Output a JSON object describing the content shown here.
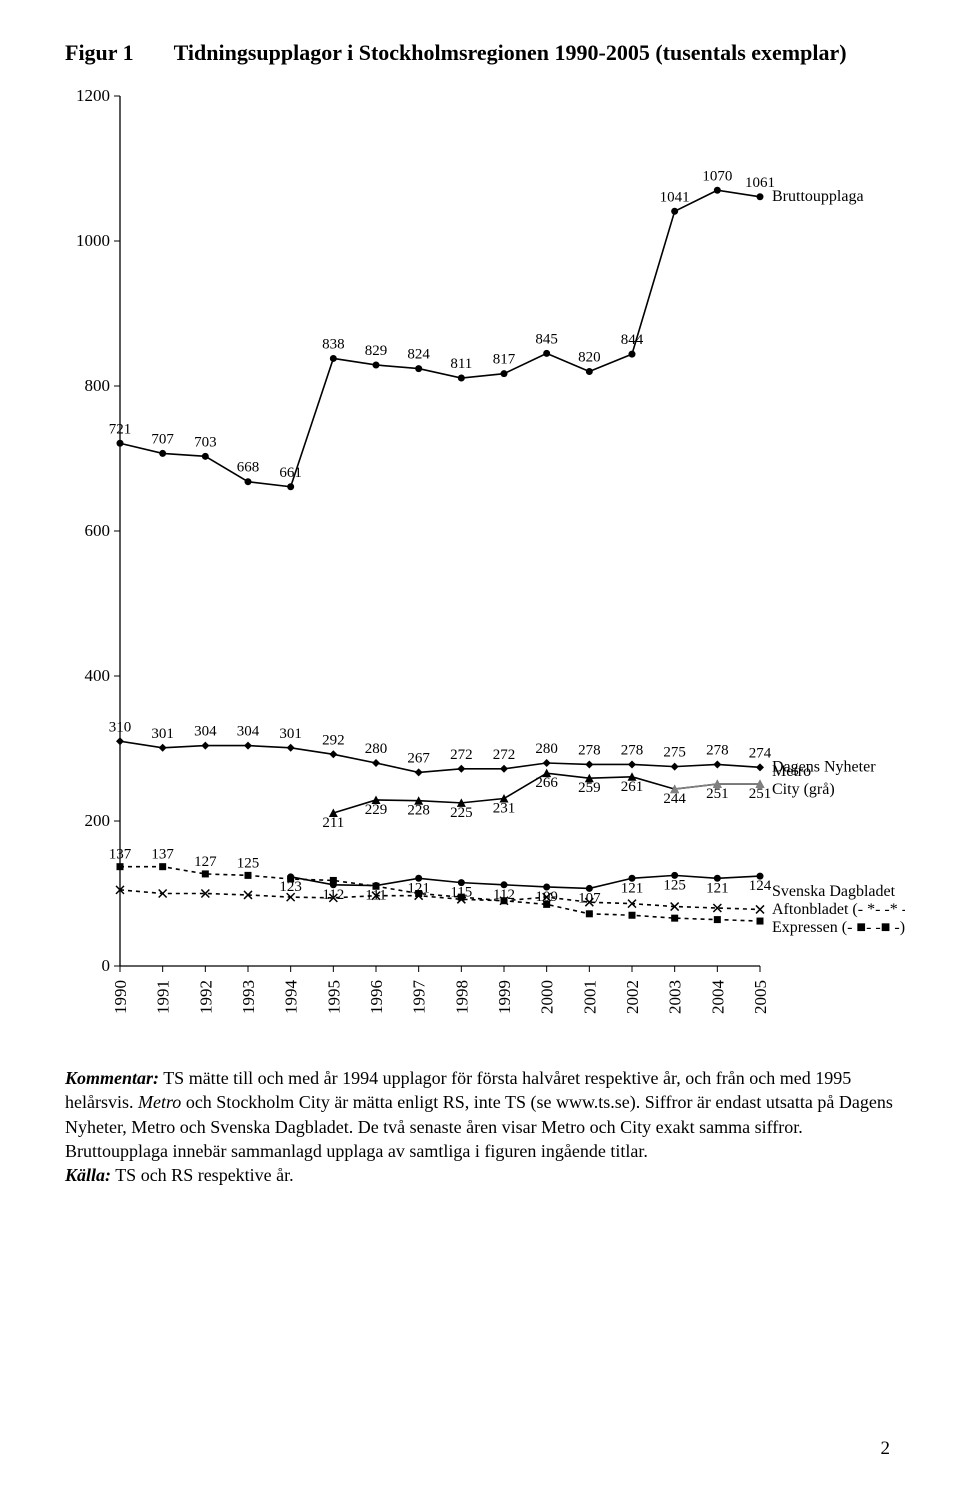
{
  "title_prefix": "Figur 1",
  "title_main": "Tidningsupplagor i Stockholmsregionen 1990-2005 (tusentals exemplar)",
  "chart": {
    "type": "line",
    "years": [
      1990,
      1991,
      1992,
      1993,
      1994,
      1995,
      1996,
      1997,
      1998,
      1999,
      2000,
      2001,
      2002,
      2003,
      2004,
      2005
    ],
    "ymin": 0,
    "ymax": 1200,
    "ytick_step": 200,
    "series": {
      "Bruttoupplaga": {
        "marker": "dot",
        "dash": "none",
        "color": "#000000",
        "start": 0,
        "values": [
          721,
          707,
          703,
          668,
          661,
          838,
          829,
          824,
          811,
          817,
          845,
          820,
          844,
          1041,
          1070,
          1061
        ],
        "label_offset_y": -10
      },
      "Dagens_Nyheter": {
        "marker": "diamond",
        "dash": "none",
        "color": "#000000",
        "start": 0,
        "values": [
          310,
          301,
          304,
          304,
          301,
          292,
          280,
          267,
          272,
          272,
          280,
          278,
          278,
          275,
          278,
          274
        ],
        "label_offset_y": -10
      },
      "Metro": {
        "marker": "triangle",
        "dash": "none",
        "color": "#000000",
        "start": 5,
        "values": [
          211,
          229,
          228,
          225,
          231,
          266,
          259,
          261,
          244,
          251,
          251
        ],
        "label_offset_y": 14
      },
      "City": {
        "marker": "triangle",
        "dash": "none",
        "color": "#808080",
        "start": 13,
        "values": [
          244,
          251,
          251
        ]
      },
      "Svenska_Dagbladet": {
        "marker": "dot",
        "dash": "none",
        "color": "#000000",
        "start": 4,
        "values": [
          123,
          112,
          111,
          121,
          115,
          112,
          109,
          107,
          121,
          125,
          121,
          124
        ],
        "label_offset_y": 14
      },
      "Aftonbladet": {
        "marker": "x",
        "dash": "4,4",
        "color": "#000000",
        "start": 0,
        "values": [
          105,
          100,
          100,
          98,
          95,
          94,
          97,
          97,
          92,
          90,
          95,
          88,
          86,
          82,
          80,
          78
        ]
      },
      "Expressen": {
        "marker": "square",
        "dash": "4,4",
        "color": "#000000",
        "start": 0,
        "values": [
          137,
          137,
          127,
          125,
          120,
          118,
          110,
          100,
          95,
          90,
          85,
          72,
          70,
          66,
          64,
          62
        ]
      }
    },
    "expressen_labels": [
      137,
      137,
      127,
      125
    ],
    "legend": [
      {
        "key": "Bruttoupplaga",
        "text": "Bruttoupplaga"
      },
      {
        "key": "Dagens_Nyheter",
        "text": "Dagens Nyheter"
      },
      {
        "key": "Metro",
        "text": "Metro"
      },
      {
        "key": "City",
        "text": "City (grå)"
      },
      {
        "key": "Svenska_Dagbladet",
        "text": "Svenska Dagbladet"
      },
      {
        "key": "Aftonbladet",
        "text": "Aftonbladet (- *- -* -)"
      },
      {
        "key": "Expressen",
        "text": "Expressen (- ■- -■ -)"
      }
    ],
    "colors": {
      "axis": "#000000",
      "grey": "#808080",
      "bg": "#ffffff"
    },
    "font_sizes": {
      "tick": 17,
      "point_label": 15,
      "legend": 16
    }
  },
  "comment": {
    "k_label": "Kommentar:",
    "k_body_1": " TS mätte till och med år 1994 upplagor för första halvåret respektive år, och från och med 1995 helårsvis. ",
    "k_ital": "Metro",
    "k_body_2": " och Stockholm City är mätta enligt RS, inte TS (se www.ts.se). Siffror är endast utsatta på Dagens Nyheter, Metro och Svenska Dagbladet. De två senaste åren visar Metro och City exakt samma siffror. Bruttoupplaga innebär sammanlagd upplaga av samtliga i figuren ingående titlar.",
    "src_label": "Källa:",
    "src_body": " TS och RS respektive år."
  },
  "page_number": "2"
}
